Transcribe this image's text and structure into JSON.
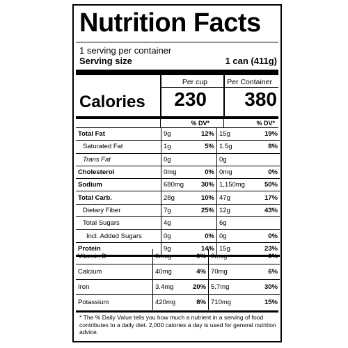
{
  "label": {
    "title": "Nutrition Facts",
    "servings": "1 serving per container",
    "serving_size_label": "Serving size",
    "serving_size_value": "1 can (411g)",
    "col_headers": [
      "Per cup",
      "Per Container"
    ],
    "calories_label": "Calories",
    "calories": [
      "230",
      "380"
    ],
    "dv_header": "% DV*"
  },
  "nutrients": [
    {
      "name": "Total Fat",
      "cup_amt": "9g",
      "cup_dv": "12%",
      "cont_amt": "15g",
      "cont_dv": "19%"
    },
    {
      "name": "Saturated Fat",
      "cup_amt": "1g",
      "cup_dv": "5%",
      "cont_amt": "1.5g",
      "cont_dv": "8%"
    },
    {
      "name": "Trans Fat",
      "cup_amt": "0g",
      "cup_dv": "",
      "cont_amt": "0g",
      "cont_dv": ""
    },
    {
      "name": "Cholesterol",
      "cup_amt": "0mg",
      "cup_dv": "0%",
      "cont_amt": "0mg",
      "cont_dv": "0%"
    },
    {
      "name": "Sodium",
      "cup_amt": "680mg",
      "cup_dv": "30%",
      "cont_amt": "1,150mg",
      "cont_dv": "50%"
    },
    {
      "name": "Total Carb.",
      "cup_amt": "28g",
      "cup_dv": "10%",
      "cont_amt": "47g",
      "cont_dv": "17%"
    },
    {
      "name": "Dietary Fiber",
      "cup_amt": "7g",
      "cup_dv": "25%",
      "cont_amt": "12g",
      "cont_dv": "43%"
    },
    {
      "name": "Total Sugars",
      "cup_amt": "4g",
      "cup_dv": "",
      "cont_amt": "6g",
      "cont_dv": ""
    },
    {
      "name": "Incl. Added Sugars",
      "cup_amt": "0g",
      "cup_dv": "0%",
      "cont_amt": "0g",
      "cont_dv": "0%"
    },
    {
      "name": "Protein",
      "cup_amt": "9g",
      "cup_dv": "14%",
      "cont_amt": "15g",
      "cont_dv": "23%"
    }
  ],
  "vitamins": [
    {
      "name": "Vitamin D",
      "cup_amt": "0mcg",
      "cup_dv": "0%",
      "cont_amt": "0mcg",
      "cont_dv": "0%"
    },
    {
      "name": "Calcium",
      "cup_amt": "40mg",
      "cup_dv": "4%",
      "cont_amt": "70mg",
      "cont_dv": "6%"
    },
    {
      "name": "Iron",
      "cup_amt": "3.4mg",
      "cup_dv": "20%",
      "cont_amt": "5.7mg",
      "cont_dv": "30%"
    },
    {
      "name": "Potassium",
      "cup_amt": "420mg",
      "cup_dv": "8%",
      "cont_amt": "710mg",
      "cont_dv": "15%"
    }
  ],
  "footnote": "* The % Daily Value tells you how much a nutrient in a serving of food contributes to a daily diet. 2,000 calories a day is used for general nutrition advice."
}
